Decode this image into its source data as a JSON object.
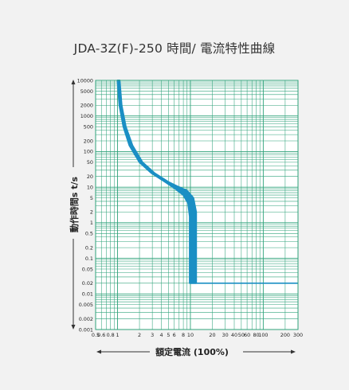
{
  "title": "JDA-3Z(F)-250 時間/ 電流特性曲線",
  "chart_data": {
    "type": "line",
    "title": "JDA-3Z(F)-250 時間/ 電流特性曲線",
    "xlabel": "額定電流 (100%)",
    "ylabel": "動作時間s t/s",
    "x_scale": "log",
    "y_scale": "log",
    "xlim": [
      0.5,
      300
    ],
    "ylim": [
      0.001,
      10000
    ],
    "grid": true,
    "x_ticks": [
      0.5,
      0.6,
      0.8,
      1,
      2,
      3,
      4,
      5,
      6,
      8,
      10,
      20,
      30,
      40,
      50,
      60,
      80,
      100,
      200,
      300
    ],
    "x_tick_labels": [
      "0.5",
      "0.6",
      "0.8",
      "1",
      "2",
      "3",
      "4",
      "5",
      "6",
      "8",
      "10",
      "20",
      "30",
      "40",
      "50",
      "60",
      "80",
      "100",
      "200",
      "300"
    ],
    "y_ticks": [
      10000,
      5000,
      2000,
      1000,
      500,
      200,
      100,
      50,
      20,
      10,
      5,
      2,
      1,
      0.5,
      0.2,
      0.1,
      0.05,
      0.02,
      0.01,
      0.005,
      0.002,
      0.001
    ],
    "y_tick_labels": [
      "10000",
      "5000",
      "2000",
      "1000",
      "500",
      "200",
      "100",
      "50",
      "20",
      "10",
      "5",
      "2",
      "1",
      "0.5",
      "0.2",
      "0.1",
      "0.05",
      "0.02",
      "0.01",
      "0.005",
      "0.002",
      "0.001"
    ],
    "colors": {
      "band": "#1a8fc4",
      "line": "#1a8fc4",
      "grid": "#2fa27a",
      "background": "#ffffff",
      "page": "#f2f2f2"
    },
    "series": [
      {
        "kind": "band",
        "upper": [
          [
            1.07,
            10000
          ],
          [
            1.14,
            2000
          ],
          [
            1.3,
            500
          ],
          [
            1.6,
            150
          ],
          [
            2.2,
            50
          ],
          [
            3.2,
            25
          ],
          [
            5.0,
            14
          ],
          [
            7.0,
            10
          ],
          [
            9.0,
            8
          ],
          [
            11.0,
            5
          ],
          [
            12.0,
            2
          ],
          [
            12.0,
            0.02
          ]
        ],
        "lower": [
          [
            1.0,
            10000
          ],
          [
            1.06,
            2000
          ],
          [
            1.2,
            500
          ],
          [
            1.45,
            150
          ],
          [
            2.0,
            50
          ],
          [
            2.9,
            25
          ],
          [
            4.5,
            14
          ],
          [
            6.2,
            9
          ],
          [
            8.0,
            6
          ],
          [
            9.3,
            3.5
          ],
          [
            9.8,
            1.5
          ],
          [
            9.8,
            0.02
          ]
        ]
      },
      {
        "kind": "line",
        "points": [
          [
            10,
            0.02
          ],
          [
            300,
            0.02
          ]
        ]
      }
    ]
  }
}
